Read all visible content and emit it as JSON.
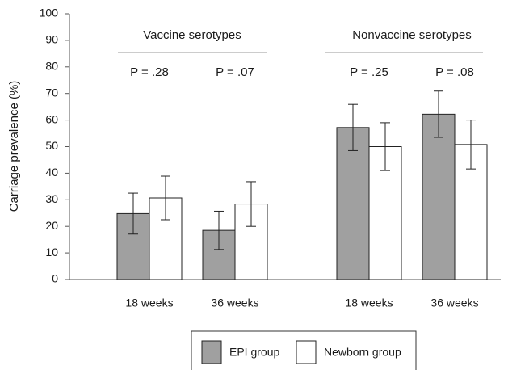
{
  "chart_data": {
    "type": "bar",
    "y_label": "Carriage prevalence (%)",
    "categories": [
      "18 weeks",
      "36 weeks",
      "18 weeks",
      "36 weeks"
    ],
    "groups": [
      "Vaccine serotypes",
      "Nonvaccine serotypes"
    ],
    "p_values": [
      "P = .28",
      "P = .07",
      "P = .25",
      "P = .08"
    ],
    "series": [
      {
        "name": "EPI group",
        "color": "#a0a0a0",
        "values": [
          24.8,
          18.5,
          57.2,
          62.2
        ],
        "errors": [
          7.7,
          7.2,
          8.7,
          8.7
        ]
      },
      {
        "name": "Newborn group",
        "color": "#ffffff",
        "values": [
          30.7,
          28.4,
          50,
          50.8
        ],
        "errors": [
          8.2,
          8.4,
          9,
          9.2
        ]
      }
    ],
    "ylim": [
      0,
      100
    ],
    "yticks": [
      0,
      10,
      20,
      30,
      40,
      50,
      60,
      70,
      80,
      90,
      100
    ],
    "grid": false
  }
}
